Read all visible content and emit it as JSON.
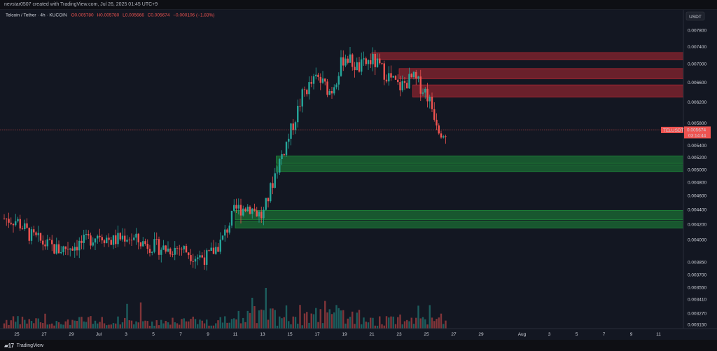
{
  "header": {
    "author_line": "nevstar0507 created with TradingView.com, Jul 26, 2025 01:45 UTC+9"
  },
  "legend": {
    "symbol": "Telcoin / Tether · 4h · KUCOIN",
    "open": "O0.005780",
    "high": "H0.005780",
    "low": "L0.005666",
    "close": "C0.005674",
    "change": "−0.000106 (−1.83%)"
  },
  "currency_label": "USDT",
  "price_tag": {
    "symbol": "TELUSDT",
    "price": "0.005674",
    "countdown": "03:14:44"
  },
  "footer": {
    "brand": "TradingView"
  },
  "colors": {
    "up": "#26a69a",
    "down": "#ef5350",
    "bg": "#131722",
    "resistance_zone": "#b22833",
    "support_zone": "#1e8c3a"
  },
  "chart_data": {
    "type": "candlestick",
    "timeframe": "4h",
    "y_ticks": [
      "0.007800",
      "0.007400",
      "0.007000",
      "0.006600",
      "0.006200",
      "0.005800",
      "0.005400",
      "0.005200",
      "0.005000",
      "0.004800",
      "0.004600",
      "0.004400",
      "0.004200",
      "0.004000",
      "0.003850",
      "0.003700",
      "0.003550",
      "0.003410",
      "0.003270",
      "0.003150"
    ],
    "x_ticks": [
      "25",
      "27",
      "29",
      "Jul",
      "3",
      "5",
      "7",
      "9",
      "11",
      "13",
      "15",
      "17",
      "19",
      "21",
      "23",
      "25",
      "27",
      "29",
      "Aug",
      "3",
      "5",
      "7",
      "9",
      "11"
    ],
    "log_scale": true,
    "grid": false,
    "last_price": 0.005674,
    "price_path": [
      {
        "date": "Jun 24",
        "price": 0.00428
      },
      {
        "date": "Jun 25",
        "price": 0.00425
      },
      {
        "date": "Jun 26",
        "price": 0.00405
      },
      {
        "date": "Jun 27",
        "price": 0.00395
      },
      {
        "date": "Jun 28",
        "price": 0.00387
      },
      {
        "date": "Jun 29",
        "price": 0.00392
      },
      {
        "date": "Jun 30",
        "price": 0.00397
      },
      {
        "date": "Jul 1",
        "price": 0.00408
      },
      {
        "date": "Jul 2",
        "price": 0.00398
      },
      {
        "date": "Jul 3",
        "price": 0.00405
      },
      {
        "date": "Jul 4",
        "price": 0.00397
      },
      {
        "date": "Jul 5",
        "price": 0.00392
      },
      {
        "date": "Jul 6",
        "price": 0.00388
      },
      {
        "date": "Jul 7",
        "price": 0.0039
      },
      {
        "date": "Jul 8",
        "price": 0.0038
      },
      {
        "date": "Jul 9",
        "price": 0.00378
      },
      {
        "date": "Jul 10",
        "price": 0.00398
      },
      {
        "date": "Jul 11",
        "price": 0.0044
      },
      {
        "date": "Jul 12",
        "price": 0.00445
      },
      {
        "date": "Jul 13",
        "price": 0.0043
      },
      {
        "date": "Jul 14",
        "price": 0.005
      },
      {
        "date": "Jul 15",
        "price": 0.0056
      },
      {
        "date": "Jul 16",
        "price": 0.0064
      },
      {
        "date": "Jul 17",
        "price": 0.0067
      },
      {
        "date": "Jul 18",
        "price": 0.0064
      },
      {
        "date": "Jul 19",
        "price": 0.0072
      },
      {
        "date": "Jul 20",
        "price": 0.0069
      },
      {
        "date": "Jul 21",
        "price": 0.0071
      },
      {
        "date": "Jul 22",
        "price": 0.0068
      },
      {
        "date": "Jul 23",
        "price": 0.0065
      },
      {
        "date": "Jul 24",
        "price": 0.0067
      },
      {
        "date": "Jul 25",
        "price": 0.0064
      },
      {
        "date": "Jul 26",
        "price": 0.005674
      }
    ],
    "zones": [
      {
        "kind": "resistance",
        "from_date": "Jul 21",
        "low": 0.0071,
        "high": 0.00726
      },
      {
        "kind": "resistance",
        "from_date": "Jul 23",
        "low": 0.00668,
        "high": 0.0069
      },
      {
        "kind": "resistance",
        "from_date": "Jul 24",
        "low": 0.0063,
        "high": 0.00655
      },
      {
        "kind": "support",
        "from_date": "Jul 14",
        "low": 0.0051,
        "high": 0.00522
      },
      {
        "kind": "support",
        "from_date": "Jul 14",
        "low": 0.00497,
        "high": 0.00508
      },
      {
        "kind": "support",
        "from_date": "Jul 11",
        "low": 0.00426,
        "high": 0.00439
      },
      {
        "kind": "support",
        "from_date": "Jul 11",
        "low": 0.00415,
        "high": 0.00424
      }
    ]
  }
}
